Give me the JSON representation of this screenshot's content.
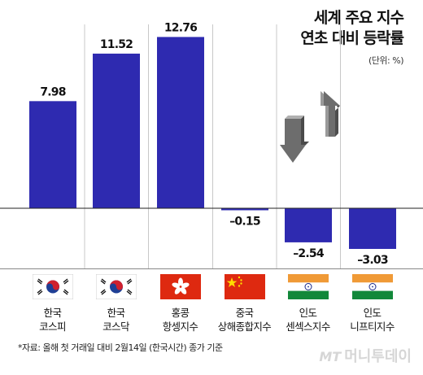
{
  "title_lines": [
    "세계 주요 지수",
    "연초 대비 등락률"
  ],
  "unit": "(단위: %)",
  "footnote": "*자료: 올해 첫 거래일 대비 2월14일 (한국시간) 종가 기준",
  "watermark": {
    "mt": "MT",
    "text": "머니투데이"
  },
  "colors": {
    "bar": "#2e2ab0",
    "line": "#222222",
    "grid": "#c8c8c8"
  },
  "flags": [
    "korea",
    "korea",
    "hongkong",
    "china",
    "india",
    "india"
  ],
  "icon": "up-down-arrows-icon",
  "chart_data": {
    "type": "bar",
    "categories": [
      "한국\n코스피",
      "한국\n코스닥",
      "홍콩\n항셍지수",
      "중국\n상해종합지수",
      "인도\n센섹스지수",
      "인도\n니프티지수"
    ],
    "values": [
      7.98,
      11.52,
      12.76,
      -0.15,
      -2.54,
      -3.03
    ],
    "value_labels": [
      "7.98",
      "11.52",
      "12.76",
      "–0.15",
      "–2.54",
      "–3.03"
    ],
    "ylim": [
      -3.5,
      13.5
    ]
  }
}
